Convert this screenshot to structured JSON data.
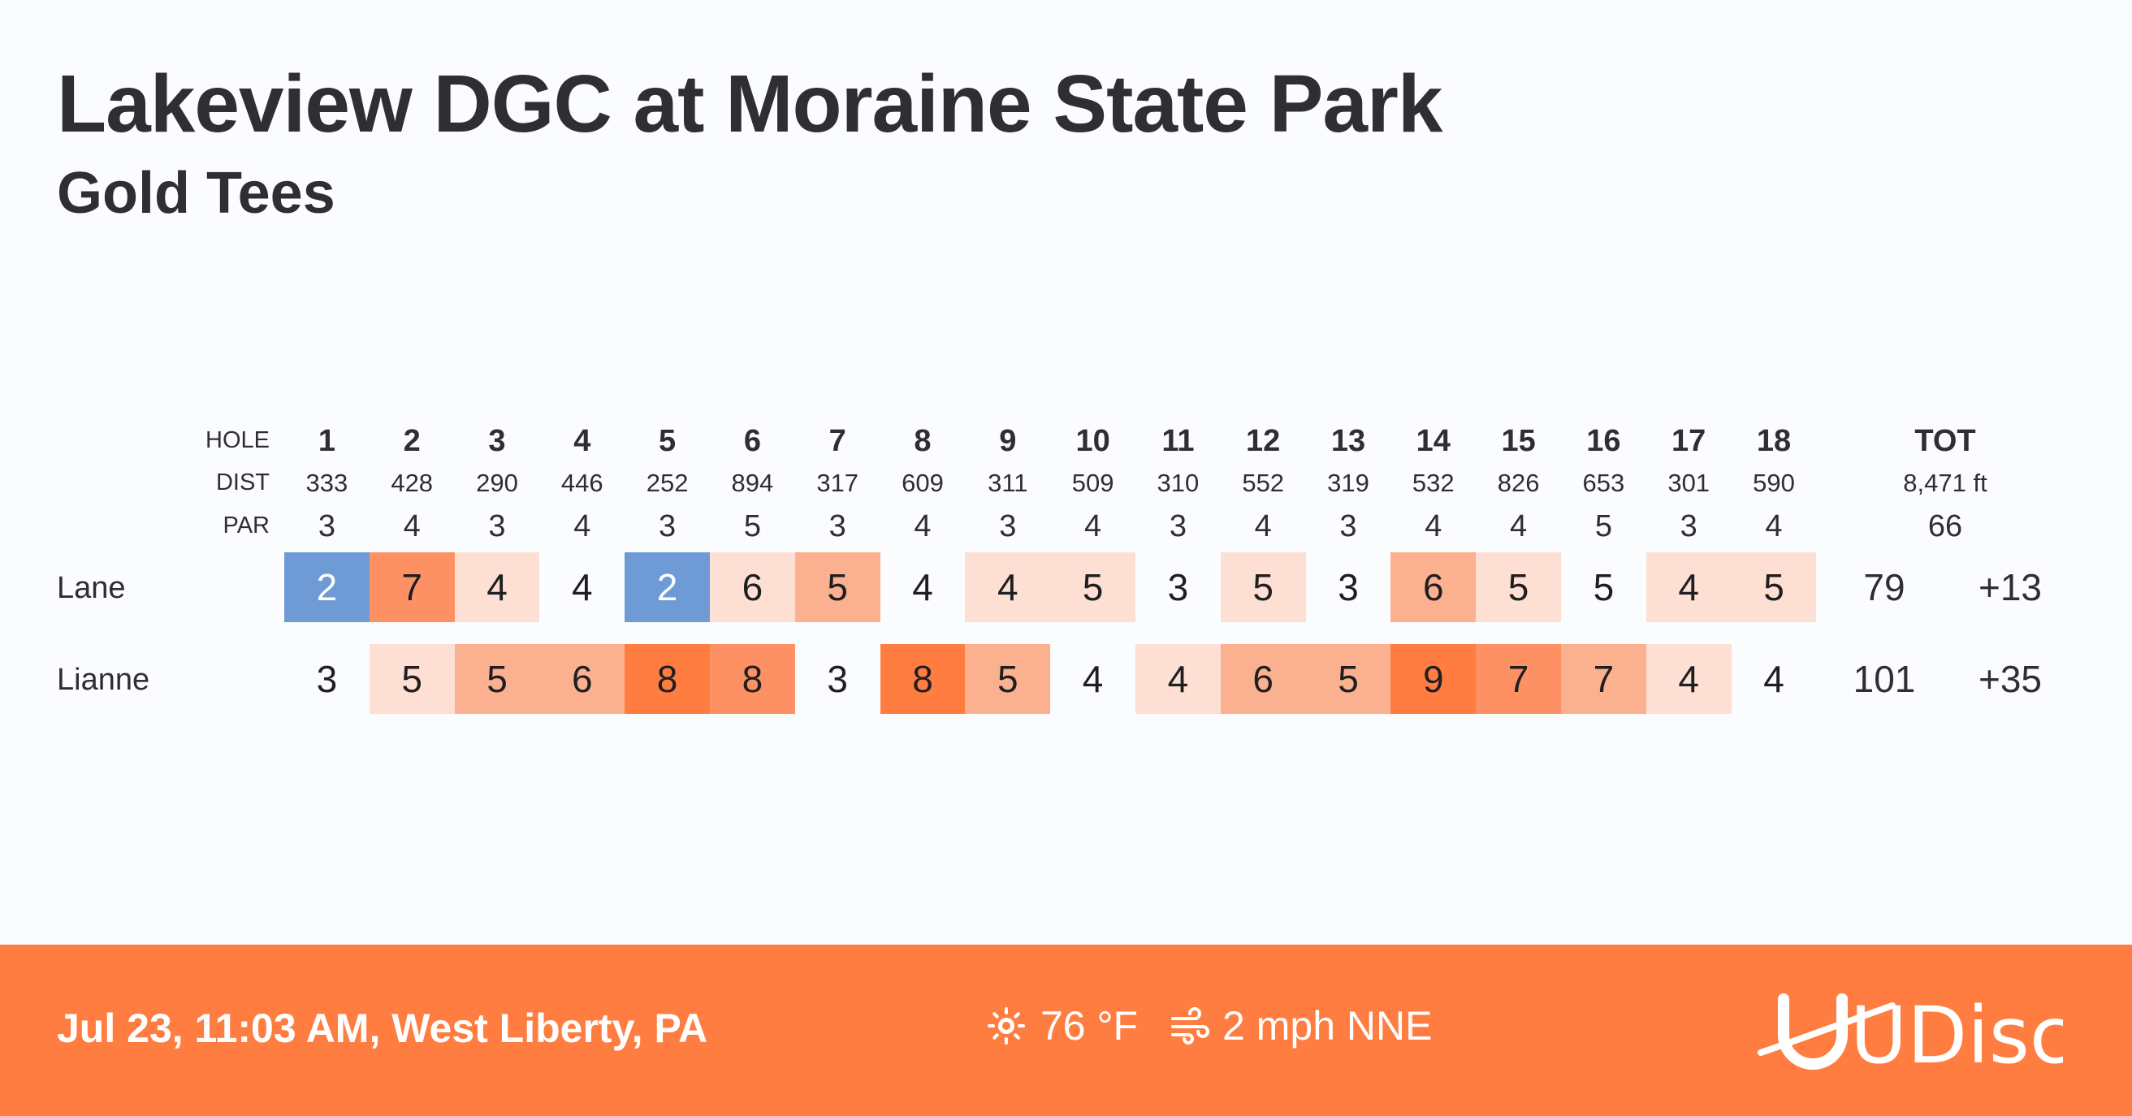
{
  "header": {
    "title": "Lakeview DGC at Moraine State Park",
    "subtitle": "Gold Tees"
  },
  "scorecard": {
    "row_labels": {
      "hole": "HOLE",
      "dist": "DIST",
      "par": "PAR"
    },
    "holes": [
      "1",
      "2",
      "3",
      "4",
      "5",
      "6",
      "7",
      "8",
      "9",
      "10",
      "11",
      "12",
      "13",
      "14",
      "15",
      "16",
      "17",
      "18"
    ],
    "distances": [
      "333",
      "428",
      "290",
      "446",
      "252",
      "894",
      "317",
      "609",
      "311",
      "509",
      "310",
      "552",
      "319",
      "532",
      "826",
      "653",
      "301",
      "590"
    ],
    "pars": [
      "3",
      "4",
      "3",
      "4",
      "3",
      "5",
      "3",
      "4",
      "3",
      "4",
      "3",
      "4",
      "3",
      "4",
      "4",
      "5",
      "3",
      "4"
    ],
    "total": {
      "label": "TOT",
      "distance": "8,471 ft",
      "par": "66"
    },
    "players": [
      {
        "name": "Lane",
        "scores": [
          "2",
          "7",
          "4",
          "4",
          "2",
          "6",
          "5",
          "4",
          "4",
          "5",
          "3",
          "5",
          "3",
          "6",
          "5",
          "5",
          "4",
          "5"
        ],
        "total": "79",
        "relative": "+13"
      },
      {
        "name": "Lianne",
        "scores": [
          "3",
          "5",
          "5",
          "6",
          "8",
          "8",
          "3",
          "8",
          "5",
          "4",
          "4",
          "6",
          "5",
          "9",
          "7",
          "7",
          "4",
          "4"
        ],
        "total": "101",
        "relative": "+35"
      }
    ]
  },
  "colors": {
    "under_par": "#6e9bd6",
    "plus1": "#fde0d3",
    "plus2": "#fbb18f",
    "plus3": "#fd9164",
    "plus4_or_more": "#ff7d40",
    "footer": "#ff7d40"
  },
  "footer": {
    "datetime_location": "Jul 23, 11:03 AM, West Liberty, PA",
    "temperature": "76 °F",
    "wind": "2 mph NNE",
    "weather_icon": "sun-icon",
    "wind_icon": "wind-icon",
    "logo": "UDisc"
  }
}
